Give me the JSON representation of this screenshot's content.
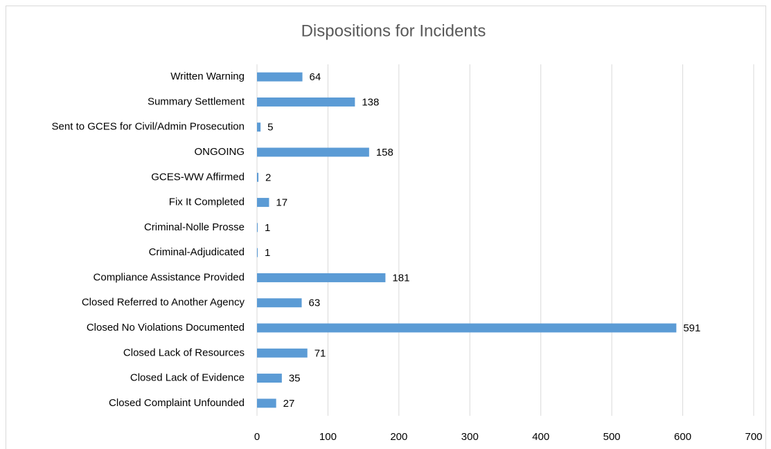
{
  "chart_data": {
    "type": "bar",
    "orientation": "horizontal",
    "title": "Dispositions for Incidents",
    "categories": [
      "Written Warning",
      "Summary Settlement",
      "Sent to GCES for Civil/Admin Prosecution",
      "ONGOING",
      "GCES-WW Affirmed",
      "Fix It Completed",
      "Criminal-Nolle Prosse",
      "Criminal-Adjudicated",
      "Compliance Assistance Provided",
      "Closed Referred to Another Agency",
      "Closed No Violations Documented",
      "Closed Lack of Resources",
      "Closed Lack of Evidence",
      "Closed Complaint Unfounded"
    ],
    "values": [
      64,
      138,
      5,
      158,
      2,
      17,
      1,
      1,
      181,
      63,
      591,
      71,
      35,
      27
    ],
    "color": "#5b9bd5",
    "xlim": [
      0,
      700
    ],
    "xticks": [
      0,
      100,
      200,
      300,
      400,
      500,
      600,
      700
    ],
    "grid": true
  }
}
